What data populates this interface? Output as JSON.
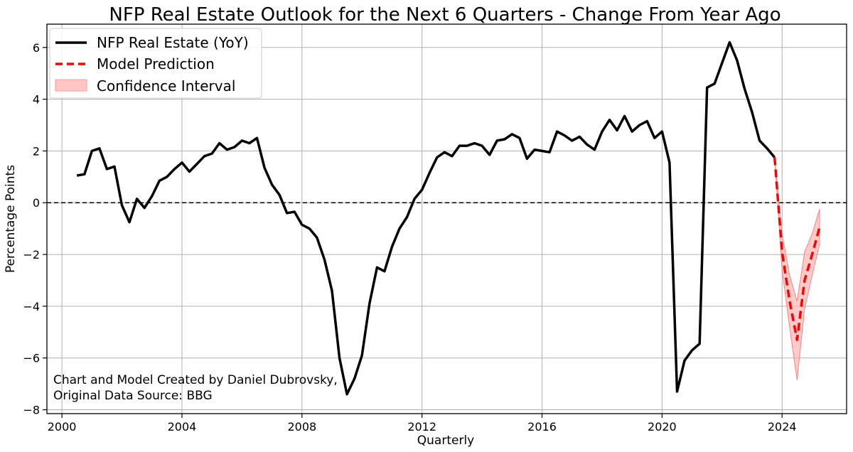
{
  "chart_data": {
    "type": "line",
    "title": "NFP Real Estate Outlook for the Next 6 Quarters - Change From Year Ago",
    "xlabel": "Quarterly",
    "ylabel": "Percentage Points",
    "xlim": [
      1999.5,
      2026.15
    ],
    "ylim": [
      -8.15,
      6.9
    ],
    "x_ticks": [
      2000,
      2004,
      2008,
      2012,
      2016,
      2020,
      2024
    ],
    "y_ticks": [
      -8,
      -6,
      -4,
      -2,
      0,
      2,
      4,
      6
    ],
    "y_tick_labels": [
      "−8",
      "−6",
      "−4",
      "−2",
      "0",
      "2",
      "4",
      "6"
    ],
    "grid": true,
    "zero_line": 0,
    "legend_position": "upper left",
    "legend": {
      "actual": "NFP Real Estate (YoY)",
      "prediction": "Model Prediction",
      "confidence": "Confidence Interval"
    },
    "annotation": "Chart and Model Created by Daniel Dubrovsky,\nOriginal Data Source: BBG",
    "colors": {
      "actual": "#000000",
      "prediction": "#ff0000",
      "confidence_fill": "#ffb3b3",
      "confidence_edge": "#ff8080"
    },
    "series": [
      {
        "name": "NFP Real Estate (YoY)",
        "x": [
          2000.5,
          2000.75,
          2001.0,
          2001.25,
          2001.5,
          2001.75,
          2002.0,
          2002.25,
          2002.5,
          2002.75,
          2003.0,
          2003.25,
          2003.5,
          2003.75,
          2004.0,
          2004.25,
          2004.5,
          2004.75,
          2005.0,
          2005.25,
          2005.5,
          2005.75,
          2006.0,
          2006.25,
          2006.5,
          2006.75,
          2007.0,
          2007.25,
          2007.5,
          2007.75,
          2008.0,
          2008.25,
          2008.5,
          2008.75,
          2009.0,
          2009.25,
          2009.5,
          2009.75,
          2010.0,
          2010.25,
          2010.5,
          2010.75,
          2011.0,
          2011.25,
          2011.5,
          2011.75,
          2012.0,
          2012.25,
          2012.5,
          2012.75,
          2013.0,
          2013.25,
          2013.5,
          2013.75,
          2014.0,
          2014.25,
          2014.5,
          2014.75,
          2015.0,
          2015.25,
          2015.5,
          2015.75,
          2016.0,
          2016.25,
          2016.5,
          2016.75,
          2017.0,
          2017.25,
          2017.5,
          2017.75,
          2018.0,
          2018.25,
          2018.5,
          2018.75,
          2019.0,
          2019.25,
          2019.5,
          2019.75,
          2020.0,
          2020.25,
          2020.5,
          2020.75,
          2021.0,
          2021.25,
          2021.5,
          2021.75,
          2022.0,
          2022.25,
          2022.5,
          2022.75,
          2023.0,
          2023.25,
          2023.5,
          2023.75
        ],
        "values": [
          1.05,
          1.1,
          2.0,
          2.1,
          1.3,
          1.4,
          -0.1,
          -0.75,
          0.15,
          -0.2,
          0.25,
          0.85,
          1.0,
          1.3,
          1.55,
          1.2,
          1.5,
          1.8,
          1.9,
          2.3,
          2.05,
          2.15,
          2.4,
          2.3,
          2.5,
          1.35,
          0.7,
          0.3,
          -0.4,
          -0.35,
          -0.85,
          -1.0,
          -1.35,
          -2.2,
          -3.4,
          -6.0,
          -7.4,
          -6.8,
          -5.9,
          -3.9,
          -2.5,
          -2.65,
          -1.7,
          -1.0,
          -0.55,
          0.15,
          0.5,
          1.15,
          1.75,
          1.95,
          1.8,
          2.2,
          2.2,
          2.3,
          2.2,
          1.85,
          2.4,
          2.45,
          2.65,
          2.5,
          1.7,
          2.05,
          2.0,
          1.95,
          2.75,
          2.6,
          2.4,
          2.55,
          2.25,
          2.05,
          2.75,
          3.2,
          2.8,
          3.35,
          2.75,
          3.0,
          3.15,
          2.5,
          2.75,
          1.55,
          -7.3,
          -6.1,
          -5.7,
          -5.45,
          4.45,
          4.6,
          5.4,
          6.2,
          5.5,
          4.4,
          3.5,
          2.4,
          2.1,
          1.75
        ]
      },
      {
        "name": "Model Prediction",
        "x": [
          2023.75,
          2024.0,
          2024.25,
          2024.5,
          2024.75,
          2025.0,
          2025.25
        ],
        "values": [
          1.75,
          -1.9,
          -3.8,
          -5.3,
          -3.0,
          -2.0,
          -0.95
        ],
        "ci_lower": [
          1.75,
          -2.6,
          -4.8,
          -6.85,
          -4.1,
          -2.8,
          -1.6
        ],
        "ci_upper": [
          1.75,
          -1.2,
          -2.8,
          -3.8,
          -1.9,
          -1.2,
          -0.25
        ]
      }
    ]
  }
}
